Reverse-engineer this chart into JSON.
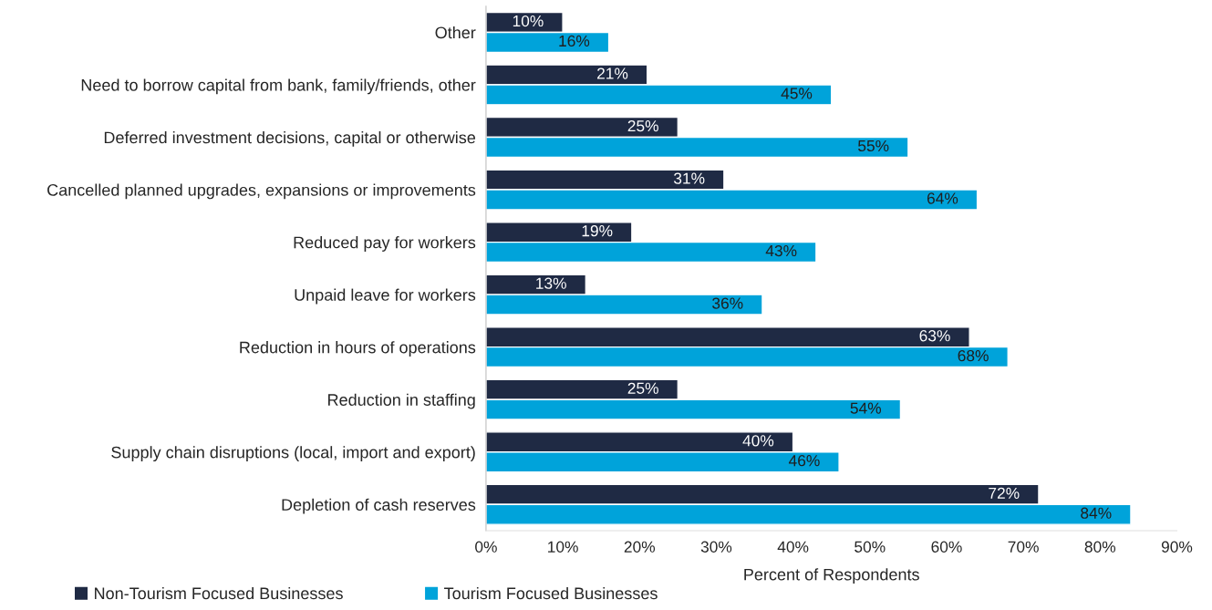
{
  "chart_data": {
    "type": "bar",
    "orientation": "horizontal",
    "xlabel": "Percent of Respondents",
    "categories": [
      "Other",
      "Need to borrow capital from bank, family/friends, other",
      "Deferred investment decisions, capital or otherwise",
      "Cancelled planned upgrades, expansions or improvements",
      "Reduced pay for workers",
      "Unpaid leave for workers",
      "Reduction in hours of operations",
      "Reduction in staffing",
      "Supply chain disruptions (local, import and export)",
      "Depletion of cash reserves"
    ],
    "series": [
      {
        "name": "Non-Tourism Focused Businesses",
        "color": "#1f2a44",
        "values": [
          10,
          21,
          25,
          31,
          19,
          13,
          63,
          25,
          40,
          72
        ],
        "value_labels": [
          "10%",
          "21%",
          "25%",
          "31%",
          "19%",
          "13%",
          "63%",
          "25%",
          "40%",
          "72%"
        ]
      },
      {
        "name": "Tourism Focused Businesses",
        "color": "#00a3da",
        "values": [
          16,
          45,
          55,
          64,
          43,
          36,
          68,
          54,
          46,
          84
        ],
        "value_labels": [
          "16%",
          "45%",
          "55%",
          "64%",
          "43%",
          "36%",
          "68%",
          "54%",
          "46%",
          "84%"
        ]
      }
    ],
    "xlim": [
      0,
      90
    ],
    "xticks": [
      {
        "value": 0,
        "label": "0%"
      },
      {
        "value": 10,
        "label": "10%"
      },
      {
        "value": 20,
        "label": "20%"
      },
      {
        "value": 30,
        "label": "30%"
      },
      {
        "value": 40,
        "label": "40%"
      },
      {
        "value": 50,
        "label": "50%"
      },
      {
        "value": 60,
        "label": "60%"
      },
      {
        "value": 70,
        "label": "70%"
      },
      {
        "value": 80,
        "label": "80%"
      },
      {
        "value": 90,
        "label": "90%"
      }
    ],
    "grid": false,
    "legend": "bottom left"
  }
}
